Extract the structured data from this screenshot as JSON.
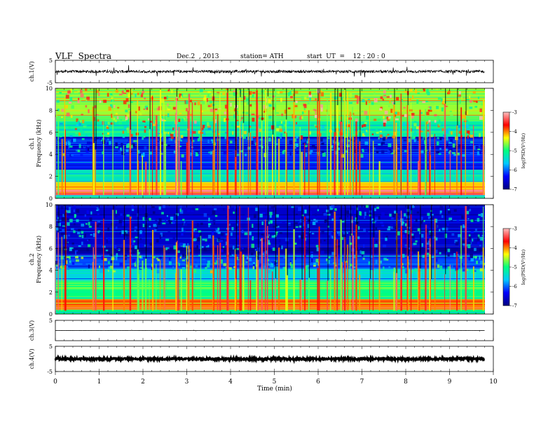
{
  "header": {
    "title": "VLF  Spectra",
    "date": "Dec.2  , 2013",
    "station": "station= ATH",
    "start": "start  UT  =    12 : 20 : 0"
  },
  "colorbar_label": "log(PSD(V²/Hz)",
  "colors": {
    "background": "#ffffff",
    "axis": "#000000",
    "cbar_stops": [
      "#000080",
      "#0000ff",
      "#00c8ff",
      "#00ff80",
      "#ffff00",
      "#ff0000",
      "#ffc0c0"
    ]
  },
  "chart_data": [
    {
      "type": "line",
      "name": "ch1-waveform",
      "ylabel": "ch.1(V)",
      "ylim": [
        -5,
        5
      ],
      "yticks": [
        "5",
        "-5"
      ],
      "baseline": 0,
      "noise_amplitude": 0.6,
      "spike_amplitude": 2.5
    },
    {
      "type": "heatmap",
      "name": "ch1-spectrogram",
      "ylabel_top": "ch.1",
      "ylabel": "Frequency (kHz)",
      "ylim": [
        0,
        10
      ],
      "yticks": [
        "0",
        "2",
        "4",
        "6",
        "8",
        "10"
      ],
      "xlim": [
        0,
        9.8
      ],
      "colorbar": {
        "ticks": [
          "-3",
          "-4",
          "-5",
          "-6",
          "-7"
        ],
        "range": [
          -7,
          -3
        ]
      },
      "bands": [
        {
          "f": [
            0.0,
            0.3
          ],
          "level": -5.4
        },
        {
          "f": [
            0.3,
            0.8
          ],
          "level": -3.4
        },
        {
          "f": [
            0.8,
            1.5
          ],
          "level": -4.2
        },
        {
          "f": [
            1.5,
            2.6
          ],
          "level": -5.3
        },
        {
          "f": [
            2.6,
            4.2
          ],
          "level": -6.2
        },
        {
          "f": [
            4.2,
            5.6
          ],
          "level": -6.5
        },
        {
          "f": [
            5.6,
            7.0
          ],
          "level": -5.2
        },
        {
          "f": [
            7.0,
            10.0
          ],
          "level": -4.6
        }
      ]
    },
    {
      "type": "heatmap",
      "name": "ch2-spectrogram",
      "ylabel_top": "ch.2",
      "ylabel": "Frequency (kHz)",
      "ylim": [
        0,
        10
      ],
      "yticks": [
        "0",
        "2",
        "4",
        "6",
        "8",
        "10"
      ],
      "xlim": [
        0,
        9.8
      ],
      "colorbar": {
        "ticks": [
          "-3",
          "-4",
          "-5",
          "-6",
          "-7"
        ],
        "range": [
          -7,
          -3
        ]
      },
      "bands": [
        {
          "f": [
            0.0,
            0.4
          ],
          "level": -5.0
        },
        {
          "f": [
            0.4,
            1.4
          ],
          "level": -4.0
        },
        {
          "f": [
            1.4,
            3.0
          ],
          "level": -5.0
        },
        {
          "f": [
            3.0,
            4.2
          ],
          "level": -5.5
        },
        {
          "f": [
            4.2,
            5.4
          ],
          "level": -6.1
        },
        {
          "f": [
            5.4,
            6.2
          ],
          "level": -6.8
        },
        {
          "f": [
            6.2,
            10.0
          ],
          "level": -6.6
        }
      ]
    },
    {
      "type": "line",
      "name": "ch3-waveform",
      "ylabel": "ch.3(V)",
      "ylim": [
        -5,
        5
      ],
      "yticks": [
        "5"
      ],
      "baseline": 0,
      "noise_amplitude": 0.05,
      "spike_amplitude": 0.3
    },
    {
      "type": "line",
      "name": "ch4-waveform",
      "ylabel": "ch.4(V)",
      "ylim": [
        -5,
        5
      ],
      "yticks": [
        "5",
        "-5"
      ],
      "baseline": 0,
      "noise_amplitude": 0.35,
      "spike_amplitude": 0.4
    }
  ],
  "xaxis": {
    "label": "Time  (min)",
    "xlim": [
      0,
      10
    ],
    "ticks": [
      "0",
      "1",
      "2",
      "3",
      "4",
      "5",
      "6",
      "7",
      "8",
      "9",
      "10"
    ]
  }
}
